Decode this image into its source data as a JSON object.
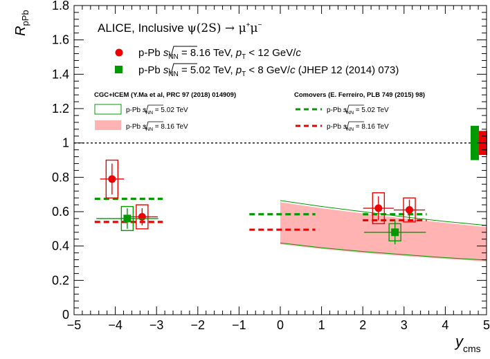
{
  "chart_data": {
    "type": "scatter",
    "title": "ALICE, Inclusive ψ(2S) → μ⁺μ⁻",
    "xlabel": "y_cms",
    "ylabel": "R_pPb",
    "xlim": [
      -5,
      5
    ],
    "ylim": [
      0,
      1.8
    ],
    "x_ticks": [
      "−5",
      "−4",
      "−3",
      "−2",
      "−1",
      "0",
      "1",
      "2",
      "3",
      "4",
      "5"
    ],
    "y_ticks": [
      "0",
      "0.2",
      "0.4",
      "0.6",
      "0.8",
      "1",
      "1.2",
      "1.4",
      "1.6",
      "1.8"
    ],
    "reference_line": 1,
    "series": [
      {
        "name": "p-Pb √sNN = 8.16 TeV, pT < 12 GeV/c",
        "color": "#ee0000",
        "marker": "circle",
        "points": [
          {
            "x": -4.08,
            "y": 0.79,
            "xerr": 0.29,
            "yerr": 0.09,
            "sys": 0.11
          },
          {
            "x": -3.35,
            "y": 0.57,
            "xerr": 0.38,
            "yerr": 0.05,
            "sys": 0.07
          },
          {
            "x": 2.38,
            "y": 0.62,
            "xerr": 0.37,
            "yerr": 0.07,
            "sys": 0.09
          },
          {
            "x": 3.13,
            "y": 0.61,
            "xerr": 0.38,
            "yerr": 0.06,
            "sys": 0.07
          }
        ]
      },
      {
        "name": "p-Pb √sNN = 5.02 TeV, pT < 8 GeV/c (JHEP 12 (2014) 073)",
        "color": "#009900",
        "marker": "square",
        "points": [
          {
            "x": -3.71,
            "y": 0.56,
            "xerr": 0.75,
            "yerr": 0.06,
            "sys": 0.07
          },
          {
            "x": 2.78,
            "y": 0.48,
            "xerr": 0.75,
            "yerr": 0.07,
            "sys": 0.05
          }
        ]
      }
    ],
    "models": {
      "cgc_icem": {
        "title": "CGC+ICEM (Y.Ma et al, PRC 97 (2018) 014909)",
        "band_502": {
          "label": "p-Pb √sNN = 5.02 TeV",
          "x": [
            0,
            1,
            2,
            3,
            4,
            5
          ],
          "upper": [
            0.665,
            0.63,
            0.6,
            0.57,
            0.543,
            0.52
          ],
          "lower": [
            0.418,
            0.39,
            0.368,
            0.35,
            0.332,
            0.318
          ]
        },
        "band_816": {
          "label": "p-Pb √sNN = 8.16 TeV",
          "x": [
            0,
            1,
            2,
            3,
            4,
            5
          ],
          "upper": [
            0.655,
            0.62,
            0.59,
            0.56,
            0.535,
            0.51
          ],
          "lower": [
            0.41,
            0.383,
            0.36,
            0.342,
            0.325,
            0.31
          ]
        }
      },
      "comovers": {
        "title": "Comovers (E. Ferreiro, PLB 749 (2015) 98)",
        "lines_502": {
          "label": "p-Pb √sNN = 5.02 TeV",
          "segments": [
            {
              "x0": -4.5,
              "x1": -2.85,
              "y": 0.675
            },
            {
              "x0": -0.75,
              "x1": 0.85,
              "y": 0.585
            },
            {
              "x0": 2.0,
              "x1": 3.55,
              "y": 0.585
            }
          ]
        },
        "lines_816": {
          "label": "p-Pb √sNN = 8.16 TeV",
          "segments": [
            {
              "x0": -4.5,
              "x1": -2.85,
              "y": 0.54
            },
            {
              "x0": -0.75,
              "x1": 0.85,
              "y": 0.495
            },
            {
              "x0": 2.0,
              "x1": 3.55,
              "y": 0.55
            }
          ]
        }
      }
    },
    "global_uncertainty": [
      {
        "color": "#009900",
        "low": 0.9,
        "high": 1.1
      },
      {
        "color": "#ee0000",
        "low": 0.93,
        "high": 1.07
      }
    ],
    "colors": {
      "red": "#ee0000",
      "green": "#009900",
      "band_fill": "#ffb3b3",
      "green_line": "#009900"
    }
  },
  "legend": {
    "title_prefix": "ALICE, Inclusive ",
    "title_psi": "ψ(2S) → μ",
    "title_sup": "+",
    "title_mu2": "μ",
    "title_sup2": "−",
    "e1_pre": "p-Pb ",
    "e1_sqrt": "s",
    "e1_sub": "NN",
    "e1_energy": " = 8.16 TeV, ",
    "e1_p": "p",
    "e1_psub": "T",
    "e1_cut": " < 12 GeV/",
    "e1_c": "c",
    "e2_pre": "p-Pb ",
    "e2_sqrt": "s",
    "e2_sub": "NN",
    "e2_energy": " = 5.02 TeV, ",
    "e2_p": "p",
    "e2_psub": "T",
    "e2_cut": " < 8 GeV/",
    "e2_c": "c",
    "e2_ref": " (JHEP 12 (2014) 073)",
    "cgc_title": "CGC+ICEM (Y.Ma et al, PRC 97 (2018) 014909)",
    "com_title": "Comovers (E. Ferreiro, PLB 749 (2015) 98)",
    "small_pre": "p-Pb ",
    "small_s": "s",
    "small_nn": "NN",
    "small_502": " = 5.02 TeV",
    "small_816": " = 8.16 TeV",
    "ylabel_R": "R",
    "ylabel_sub": "pPb",
    "xlabel_y": "y",
    "xlabel_sub": "cms"
  }
}
